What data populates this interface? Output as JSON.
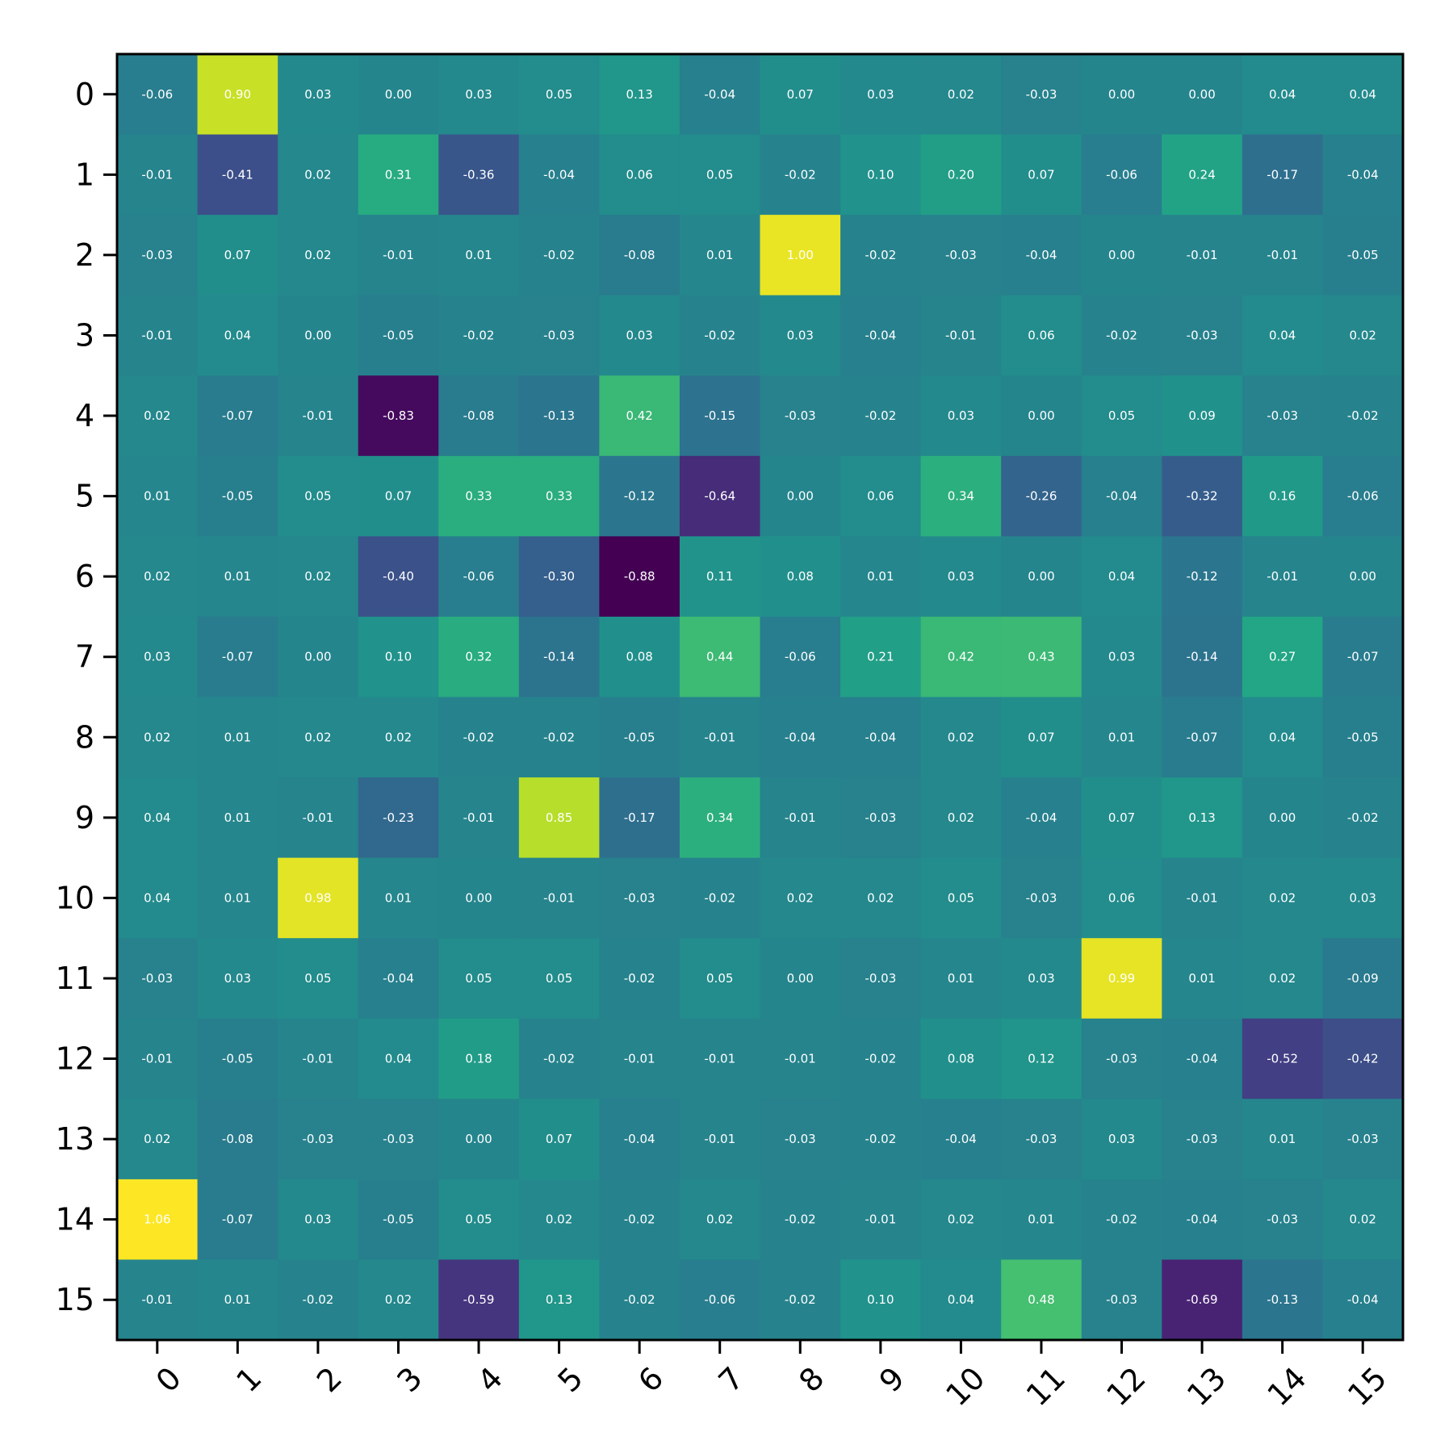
{
  "chart_data": {
    "type": "heatmap",
    "title": "",
    "xlabel": "",
    "ylabel": "",
    "colormap": "viridis",
    "value_format": "2 decimals",
    "x_ticks": [
      "0",
      "1",
      "2",
      "3",
      "4",
      "5",
      "6",
      "7",
      "8",
      "9",
      "10",
      "11",
      "12",
      "13",
      "14",
      "15"
    ],
    "y_ticks": [
      "0",
      "1",
      "2",
      "3",
      "4",
      "5",
      "6",
      "7",
      "8",
      "9",
      "10",
      "11",
      "12",
      "13",
      "14",
      "15"
    ],
    "values": [
      [
        -0.06,
        0.9,
        0.03,
        -0.0,
        0.03,
        0.05,
        0.13,
        -0.04,
        0.07,
        0.03,
        0.02,
        -0.03,
        0.0,
        -0.0,
        0.04,
        0.04
      ],
      [
        -0.01,
        -0.41,
        0.02,
        0.31,
        -0.36,
        -0.04,
        0.06,
        0.05,
        -0.02,
        0.1,
        0.2,
        0.07,
        -0.06,
        0.24,
        -0.17,
        -0.04
      ],
      [
        -0.03,
        0.07,
        0.02,
        -0.01,
        0.01,
        -0.02,
        -0.08,
        0.01,
        1.0,
        -0.02,
        -0.03,
        -0.04,
        0.0,
        -0.01,
        -0.01,
        -0.05
      ],
      [
        -0.01,
        0.04,
        0.0,
        -0.05,
        -0.02,
        -0.03,
        0.03,
        -0.02,
        0.03,
        -0.04,
        -0.01,
        0.06,
        -0.02,
        -0.03,
        0.04,
        0.02
      ],
      [
        0.02,
        -0.07,
        -0.01,
        -0.83,
        -0.08,
        -0.13,
        0.42,
        -0.15,
        -0.03,
        -0.02,
        0.03,
        0.0,
        0.05,
        0.09,
        -0.03,
        -0.02
      ],
      [
        0.01,
        -0.05,
        0.05,
        0.07,
        0.33,
        0.33,
        -0.12,
        -0.64,
        -0.0,
        0.06,
        0.34,
        -0.26,
        -0.04,
        -0.32,
        0.16,
        -0.06
      ],
      [
        0.02,
        0.01,
        0.02,
        -0.4,
        -0.06,
        -0.3,
        -0.88,
        0.11,
        0.08,
        0.01,
        0.03,
        0.0,
        0.04,
        -0.12,
        -0.01,
        -0.0
      ],
      [
        0.03,
        -0.07,
        0.0,
        0.1,
        0.32,
        -0.14,
        0.08,
        0.44,
        -0.06,
        0.21,
        0.42,
        0.43,
        0.03,
        -0.14,
        0.27,
        -0.07
      ],
      [
        0.02,
        0.01,
        0.02,
        0.02,
        -0.02,
        -0.02,
        -0.05,
        -0.01,
        -0.04,
        -0.04,
        0.02,
        0.07,
        0.01,
        -0.07,
        0.04,
        -0.05
      ],
      [
        0.04,
        0.01,
        -0.01,
        -0.23,
        -0.01,
        0.85,
        -0.17,
        0.34,
        -0.01,
        -0.03,
        0.02,
        -0.04,
        0.07,
        0.13,
        -0.0,
        -0.02
      ],
      [
        0.04,
        0.01,
        0.98,
        0.01,
        0.0,
        -0.01,
        -0.03,
        -0.02,
        0.02,
        0.02,
        0.05,
        -0.03,
        0.06,
        -0.01,
        0.02,
        0.03
      ],
      [
        -0.03,
        0.03,
        0.05,
        -0.04,
        0.05,
        0.05,
        -0.02,
        0.05,
        -0.0,
        -0.03,
        0.01,
        0.03,
        0.99,
        0.01,
        0.02,
        -0.09
      ],
      [
        -0.01,
        -0.05,
        -0.01,
        0.04,
        0.18,
        -0.02,
        -0.01,
        -0.01,
        -0.01,
        -0.02,
        0.08,
        0.12,
        -0.03,
        -0.04,
        -0.52,
        -0.42
      ],
      [
        0.02,
        -0.08,
        -0.03,
        -0.03,
        -0.0,
        0.07,
        -0.04,
        -0.01,
        -0.03,
        -0.02,
        -0.04,
        -0.03,
        0.03,
        -0.03,
        0.01,
        -0.03
      ],
      [
        1.06,
        -0.07,
        0.03,
        -0.05,
        0.05,
        0.02,
        -0.02,
        0.02,
        -0.02,
        -0.01,
        0.02,
        0.01,
        -0.02,
        -0.04,
        -0.03,
        0.02
      ],
      [
        -0.01,
        0.01,
        -0.02,
        0.02,
        -0.59,
        0.13,
        -0.02,
        -0.06,
        -0.02,
        0.1,
        0.04,
        0.48,
        -0.03,
        -0.69,
        -0.13,
        -0.04
      ]
    ],
    "vmin": -0.88,
    "vmax": 1.06,
    "grid": false,
    "legend": "none"
  }
}
